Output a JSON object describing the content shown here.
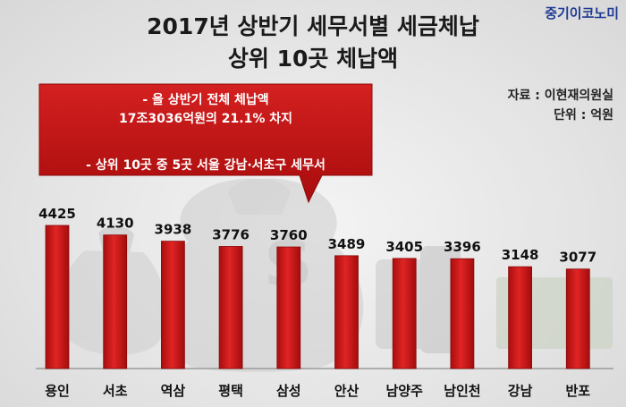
{
  "header": {
    "title_line1": "2017년 상반기 세무서별 세금체납",
    "title_line2": "상위 10곳 체납액",
    "brand": "중기이코노미"
  },
  "meta": {
    "source": "자료 : 이현재의원실",
    "unit": "단위 : 억원"
  },
  "callout": {
    "line1": "- 올 상반기 전체 체납액",
    "line2": "17조3036억원의 21.1% 차지",
    "line3": "- 상위 10곳 중 5곳 서울 강남·서초구 세무서"
  },
  "chart_data": {
    "type": "bar",
    "title": "2017년 상반기 세무서별 세금체납 상위 10곳 체납액",
    "categories": [
      "용인",
      "서초",
      "역삼",
      "평택",
      "삼성",
      "안산",
      "남양주",
      "남인천",
      "강남",
      "반포"
    ],
    "values": [
      4425,
      4130,
      3938,
      3776,
      3760,
      3489,
      3405,
      3396,
      3148,
      3077
    ],
    "ylabel": "",
    "ylim": [
      0,
      4500
    ],
    "grid": false,
    "bar_color": "#d01818",
    "label_color": "#111111"
  }
}
